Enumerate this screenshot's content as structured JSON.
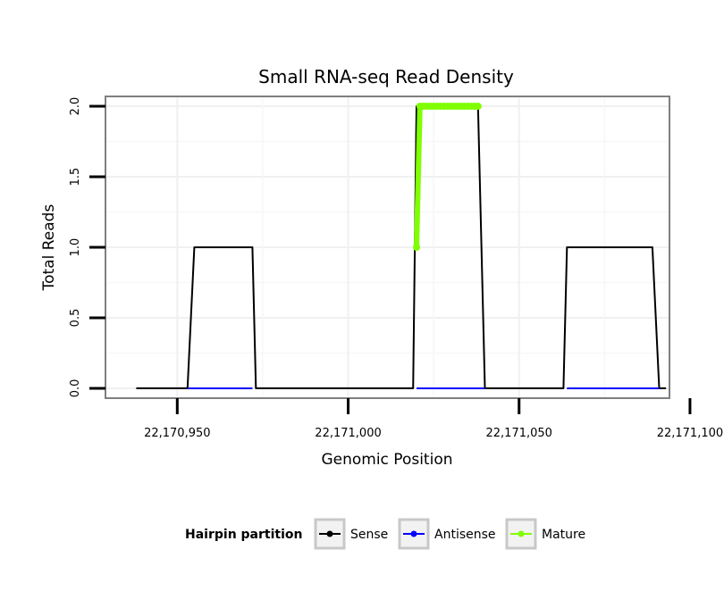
{
  "chart_data": {
    "type": "line",
    "title": "Small RNA-seq Read Density",
    "xlabel": "Genomic Position",
    "ylabel": "Total Reads",
    "xlim": [
      22170929,
      22171094
    ],
    "ylim": [
      -0.07,
      2.07
    ],
    "x_ticks": [
      22170950,
      22171000,
      22171050,
      22171100
    ],
    "x_tick_labels": [
      "22,170,950",
      "22,171,000",
      "22,171,050",
      "22,171,100"
    ],
    "y_ticks": [
      0,
      0.5,
      1,
      1.5,
      2
    ],
    "y_tick_labels": [
      "0.0",
      "0.5",
      "1.0",
      "1.5",
      "2.0"
    ],
    "grid": true,
    "legend": {
      "title": "Hairpin partition",
      "position": "bottom",
      "items": [
        "Sense",
        "Antisense",
        "Mature"
      ]
    },
    "series": [
      {
        "name": "Sense",
        "color": "#000000",
        "points": false,
        "x": [
          22170938,
          22170953,
          22170955,
          22170972,
          22170973,
          22171019,
          22171020,
          22171038,
          22171040,
          22171063,
          22171064,
          22171089,
          22171091,
          22171093
        ],
        "values": [
          0,
          0,
          1,
          1,
          0,
          0,
          2,
          2,
          0,
          0,
          1,
          1,
          0,
          0
        ]
      },
      {
        "name": "Antisense",
        "color": "#0000ff",
        "points": false,
        "x": [
          22170953,
          22170972,
          22171020,
          22171040,
          22171064,
          22171091
        ],
        "values": [
          0,
          0,
          0,
          0,
          0,
          0
        ],
        "segments": [
          [
            0,
            1
          ],
          [
            2,
            3
          ],
          [
            4,
            5
          ]
        ]
      },
      {
        "name": "Mature",
        "color": "#7fff00",
        "points": true,
        "x": [
          22171020,
          22171021,
          22171022,
          22171023,
          22171024,
          22171025,
          22171026,
          22171027,
          22171028,
          22171029,
          22171030,
          22171031,
          22171032,
          22171033,
          22171034,
          22171035,
          22171036,
          22171037,
          22171038
        ],
        "values": [
          1,
          2,
          2,
          2,
          2,
          2,
          2,
          2,
          2,
          2,
          2,
          2,
          2,
          2,
          2,
          2,
          2,
          2,
          2
        ]
      }
    ]
  }
}
